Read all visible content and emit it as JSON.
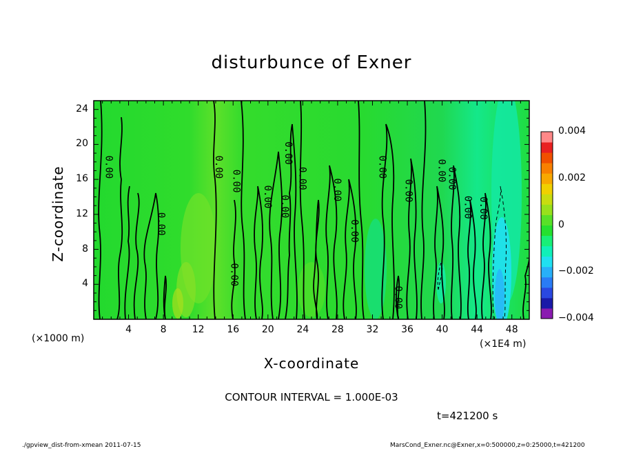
{
  "chart_data": {
    "type": "heatmap",
    "title": "disturbunce of Exner",
    "xlabel": "X-coordinate",
    "ylabel": "Z-coordinate",
    "x_unit_left": "(×1000 m)",
    "x_unit_right": "(×1E4 m)",
    "x_ticks": [
      "4",
      "8",
      "12",
      "16",
      "20",
      "24",
      "28",
      "32",
      "36",
      "40",
      "44",
      "48"
    ],
    "y_ticks": [
      "4",
      "8",
      "12",
      "16",
      "20",
      "24"
    ],
    "xlim": [
      0,
      50
    ],
    "ylim": [
      0,
      25
    ],
    "colorbar": {
      "labels": [
        "0.004",
        "0.002",
        "0",
        "−0.002",
        "−0.004"
      ],
      "range": [
        -0.004,
        0.004
      ],
      "colors": [
        "#8a1bb0",
        "#1a1aa8",
        "#2a48e0",
        "#2a7cf5",
        "#28b0f8",
        "#20e0f0",
        "#10f0b8",
        "#18ef78",
        "#25e030",
        "#58e028",
        "#98e01c",
        "#c8dc10",
        "#f0d000",
        "#f8a800",
        "#f88000",
        "#f05000",
        "#e82020",
        "#ff8888"
      ]
    },
    "contour_labels": [
      {
        "text": "0.00",
        "x": 1.4,
        "y": 17.4
      },
      {
        "text": "0.00",
        "x": 7.4,
        "y": 10.9
      },
      {
        "text": "0.00",
        "x": 14.0,
        "y": 17.4
      },
      {
        "text": "0.00",
        "x": 16.0,
        "y": 15.8
      },
      {
        "text": "0.00",
        "x": 15.8,
        "y": 5.1
      },
      {
        "text": "0.00",
        "x": 19.6,
        "y": 14.0
      },
      {
        "text": "0.00",
        "x": 21.6,
        "y": 12.9
      },
      {
        "text": "0.00",
        "x": 22.0,
        "y": 19.0
      },
      {
        "text": "0.00",
        "x": 23.6,
        "y": 16.1
      },
      {
        "text": "0.00",
        "x": 27.6,
        "y": 14.8
      },
      {
        "text": "0.00",
        "x": 29.6,
        "y": 10.1
      },
      {
        "text": "0.00",
        "x": 32.8,
        "y": 17.4
      },
      {
        "text": "0.00",
        "x": 35.8,
        "y": 14.7
      },
      {
        "text": "0.00",
        "x": 34.6,
        "y": 2.5
      },
      {
        "text": "0.00",
        "x": 39.6,
        "y": 17.0
      },
      {
        "text": "0.00",
        "x": 40.8,
        "y": 16.1
      },
      {
        "text": "0.00",
        "x": 42.6,
        "y": 12.8
      },
      {
        "text": "0.00",
        "x": 44.4,
        "y": 12.7
      }
    ],
    "interval": "CONTOUR INTERVAL = 1.000E-03",
    "time": "t=421200 s"
  },
  "footer": {
    "left": "./gpview_dist-from-xmean 2011-07-15",
    "right": "MarsCond_Exner.nc@Exner,x=0:500000,z=0:25000,t=421200"
  }
}
